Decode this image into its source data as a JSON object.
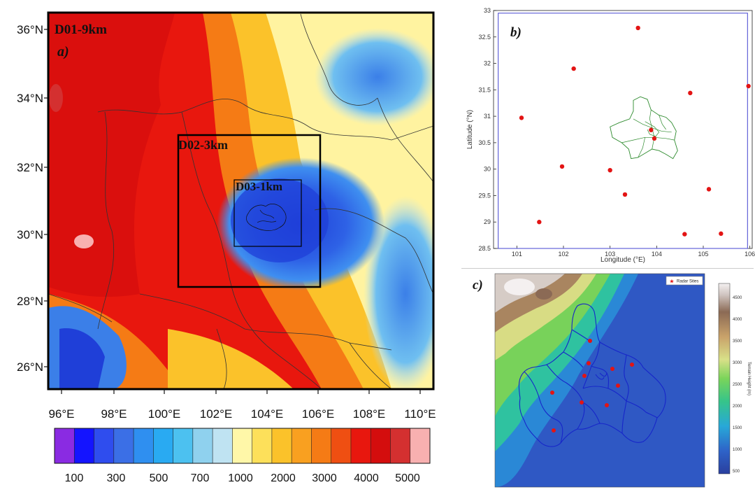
{
  "panel_a": {
    "domain_labels": [
      "D01-9km",
      "D02-3km",
      "D03-1km"
    ],
    "panel_tag": "a)",
    "lat_ticks": [
      "36°N",
      "34°N",
      "32°N",
      "30°N",
      "28°N",
      "26°N"
    ],
    "lon_ticks": [
      "96°E",
      "98°E",
      "100°E",
      "102°E",
      "104°E",
      "106°E",
      "108°E",
      "110°E"
    ],
    "colorbar": {
      "labels": [
        "100",
        "300",
        "500",
        "700",
        "1000",
        "2000",
        "3000",
        "4000",
        "5000"
      ],
      "colors": [
        "#8a2be2",
        "#1414ff",
        "#2f4dee",
        "#3b6fe6",
        "#2f8ff0",
        "#29aaf2",
        "#4cc1f0",
        "#8fd1ee",
        "#bfe3f2",
        "#fff7a8",
        "#fde05a",
        "#fbc22a",
        "#f9a020",
        "#f57b15",
        "#ef4f12",
        "#e8170e",
        "#d40d0d",
        "#d43030",
        "#f8b0b0"
      ]
    }
  },
  "panel_b": {
    "panel_tag": "b)",
    "chart_data": {
      "type": "scatter",
      "xlabel": "Longitude (°E)",
      "ylabel": "Latitude (°N)",
      "xlim": [
        100.5,
        106.05
      ],
      "ylim": [
        28.5,
        33.0
      ],
      "x_ticks": [
        "101",
        "102",
        "103",
        "104",
        "105",
        "106"
      ],
      "y_ticks": [
        "28.5",
        "29",
        "29.5",
        "30",
        "30.5",
        "31",
        "31.5",
        "32",
        "32.5",
        "33"
      ],
      "points": [
        {
          "x": 103.6,
          "y": 32.67
        },
        {
          "x": 102.22,
          "y": 31.9
        },
        {
          "x": 101.1,
          "y": 30.97
        },
        {
          "x": 104.72,
          "y": 31.44
        },
        {
          "x": 105.97,
          "y": 31.57
        },
        {
          "x": 103.88,
          "y": 30.74
        },
        {
          "x": 103.95,
          "y": 30.58
        },
        {
          "x": 101.97,
          "y": 30.05
        },
        {
          "x": 103.0,
          "y": 29.98
        },
        {
          "x": 103.32,
          "y": 29.52
        },
        {
          "x": 105.12,
          "y": 29.62
        },
        {
          "x": 101.48,
          "y": 29.0
        },
        {
          "x": 104.6,
          "y": 28.77
        },
        {
          "x": 105.38,
          "y": 28.78
        }
      ],
      "point_color": "#e31414",
      "boundary_color": "#2e8b2e",
      "frame_color": "#5555d5"
    }
  },
  "panel_c": {
    "panel_tag": "c)",
    "legend_label": "Radar Sites",
    "colorbar": {
      "title": "Terrain Height (m)",
      "ticks": [
        "4500",
        "4000",
        "3500",
        "3000",
        "2500",
        "2000",
        "1500",
        "1000",
        "500"
      ]
    }
  }
}
